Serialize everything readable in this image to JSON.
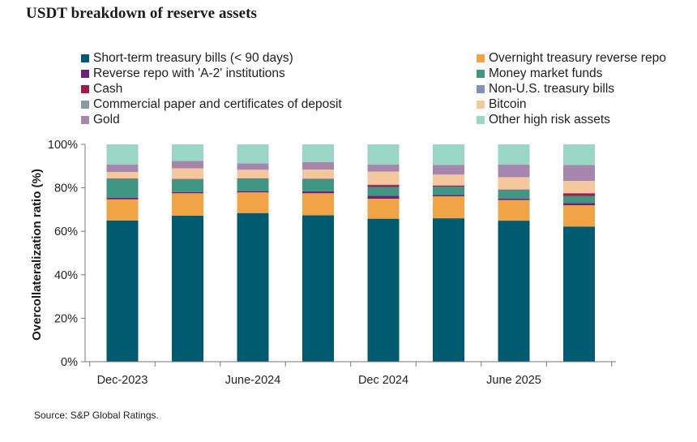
{
  "title": "USDT breakdown of reserve assets",
  "source": "Source: S&P Global Ratings.",
  "legend": [
    {
      "label": "Short-term treasury bills (< 90 days)",
      "color": "#005a70"
    },
    {
      "label": "Overnight treasury reverse repo",
      "color": "#f0a446"
    },
    {
      "label": "Reverse repo with 'A-2' institutions",
      "color": "#6e1f7a"
    },
    {
      "label": "Money market funds",
      "color": "#3f9783"
    },
    {
      "label": "Cash",
      "color": "#a01c44"
    },
    {
      "label": "Non-U.S. treasury bills",
      "color": "#8291b5"
    },
    {
      "label": "Commercial paper and certificates of deposit",
      "color": "#8a9aa6"
    },
    {
      "label": "Bitcoin",
      "color": "#f4c79c"
    },
    {
      "label": "Gold",
      "color": "#a686ad"
    },
    {
      "label": "Other high risk assets",
      "color": "#9ad6c4"
    }
  ],
  "chart_data": {
    "type": "bar",
    "stacked": true,
    "title": "USDT breakdown of reserve assets",
    "xlabel": "",
    "ylabel": "Overcollateralization ratio (%)",
    "ylim": [
      0,
      100
    ],
    "y_ticks": [
      "0%",
      "20%",
      "40%",
      "60%",
      "80%",
      "100%"
    ],
    "x_tick_labels": [
      {
        "label": "Dec-2023",
        "index": 0
      },
      {
        "label": "June-2024",
        "index": 2
      },
      {
        "label": "Dec 2024",
        "index": 4
      },
      {
        "label": "June 2025",
        "index": 6
      }
    ],
    "categories": [
      "",
      "",
      "",
      "",
      "",
      "",
      "",
      ""
    ],
    "series": [
      {
        "name": "Short-term treasury bills (< 90 days)",
        "color": "#005a70",
        "values": [
          65,
          67.2,
          68.4,
          67.4,
          65.8,
          66.0,
          64.9,
          62.2
        ]
      },
      {
        "name": "Overnight treasury reverse repo",
        "color": "#f0a446",
        "values": [
          9.7,
          10.3,
          9.5,
          10.1,
          9.2,
          10.1,
          9.5,
          9.8
        ]
      },
      {
        "name": "Reverse repo with 'A-2' institutions",
        "color": "#6e1f7a",
        "values": [
          0.8,
          0.6,
          0.6,
          0.9,
          1.4,
          0.6,
          0.7,
          1.0
        ]
      },
      {
        "name": "Money market funds",
        "color": "#3f9783",
        "values": [
          8.6,
          5.8,
          5.7,
          5.6,
          4.0,
          3.8,
          3.9,
          3.2
        ]
      },
      {
        "name": "Cash",
        "color": "#a01c44",
        "values": [
          0.2,
          0.2,
          0.2,
          0.2,
          0.9,
          0.5,
          0.2,
          1.2
        ]
      },
      {
        "name": "Non-U.S. treasury bills",
        "color": "#8291b5",
        "values": [
          0,
          0,
          0,
          0,
          0.2,
          0.2,
          0.1,
          0.2
        ]
      },
      {
        "name": "Commercial paper and certificates of deposit",
        "color": "#8a9aa6",
        "values": [
          0,
          0,
          0,
          0,
          0,
          0,
          0,
          0
        ]
      },
      {
        "name": "Bitcoin",
        "color": "#f4c79c",
        "values": [
          3.0,
          4.9,
          3.9,
          4.2,
          6.0,
          4.9,
          5.6,
          5.6
        ]
      },
      {
        "name": "Gold",
        "color": "#a686ad",
        "values": [
          3.5,
          3.4,
          2.9,
          3.5,
          3.3,
          4.4,
          5.8,
          7.3
        ]
      },
      {
        "name": "Other high risk assets",
        "color": "#9ad6c4",
        "values": [
          9.2,
          7.6,
          8.8,
          8.1,
          9.2,
          9.5,
          9.3,
          9.5
        ]
      }
    ],
    "grid": false,
    "legend_position": "top"
  }
}
